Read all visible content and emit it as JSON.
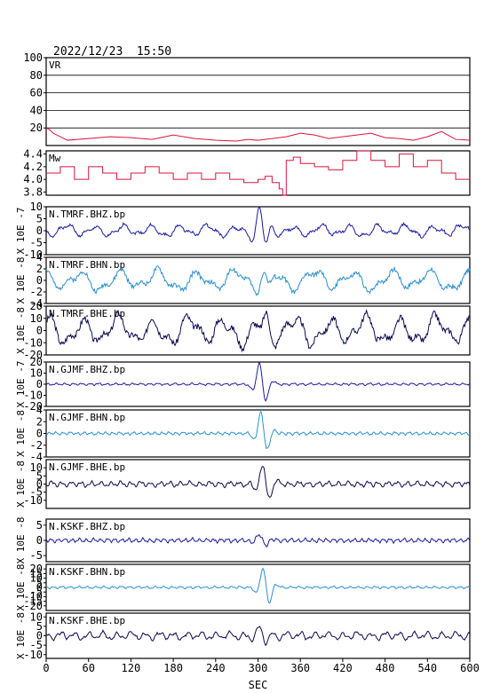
{
  "header": {
    "timestamp": "2022/12/23  15:50"
  },
  "x_axis": {
    "label": "SEC",
    "ticks": [
      "0",
      "60",
      "120",
      "180",
      "240",
      "300",
      "360",
      "420",
      "480",
      "540",
      "600"
    ],
    "range": [
      0,
      600
    ]
  },
  "colors": {
    "frame": "#000000",
    "vr_mw": "#dc143c",
    "bhz": "#1a1aa0",
    "bhn": "#2a8fd0",
    "bhe": "#0a0a50"
  },
  "chart_data": [
    {
      "type": "line",
      "label": "VR",
      "ylim": [
        0,
        100
      ],
      "yticks": [
        "100",
        "80",
        "60",
        "40",
        "20"
      ],
      "grid": true,
      "series": [
        {
          "x": [
            0,
            5,
            10,
            30,
            60,
            90,
            120,
            150,
            180,
            210,
            240,
            270,
            285,
            300,
            320,
            340,
            360,
            380,
            400,
            420,
            440,
            460,
            480,
            500,
            520,
            540,
            560,
            580,
            600
          ],
          "y": [
            20,
            18,
            14,
            6,
            8,
            10,
            9,
            7,
            12,
            8,
            6,
            5,
            7,
            6,
            8,
            10,
            14,
            12,
            8,
            10,
            12,
            14,
            9,
            8,
            6,
            10,
            16,
            7,
            6
          ]
        }
      ]
    },
    {
      "type": "line",
      "label": "Mw",
      "ylim": [
        3.75,
        4.45
      ],
      "yticks": [
        "4.4",
        "4.2",
        "4.0",
        "3.8"
      ],
      "series": [
        {
          "x": [
            0,
            20,
            40,
            60,
            80,
            100,
            120,
            140,
            160,
            180,
            200,
            220,
            240,
            260,
            280,
            300,
            310,
            320,
            330,
            335,
            340,
            350,
            360,
            380,
            400,
            420,
            440,
            460,
            480,
            500,
            520,
            540,
            560,
            580,
            600
          ],
          "y": [
            4.1,
            4.2,
            4.0,
            4.2,
            4.1,
            4.0,
            4.1,
            4.2,
            4.1,
            4.0,
            4.1,
            4.0,
            4.1,
            4.0,
            3.95,
            4.0,
            4.05,
            3.95,
            3.85,
            3.75,
            4.3,
            4.35,
            4.25,
            4.2,
            4.15,
            4.3,
            4.45,
            4.3,
            4.2,
            4.4,
            4.2,
            4.3,
            4.1,
            4.0,
            4.0
          ]
        }
      ]
    },
    {
      "type": "line",
      "label": "N.TMRF.BHZ.bp",
      "ylim": [
        -10,
        10
      ],
      "yticks": [
        "10",
        "5",
        "0",
        "-5",
        "-10"
      ],
      "scale_label": "X 10E -7",
      "color_key": "bhz",
      "amp": 3,
      "period": 40,
      "seed": 1,
      "event": {
        "t": 300,
        "amp": 9
      }
    },
    {
      "type": "line",
      "label": "N.TMRF.BHN.bp",
      "ylim": [
        -4,
        4
      ],
      "yticks": [
        "4",
        "2",
        "0",
        "-2",
        "-4"
      ],
      "scale_label": "X 10E -8",
      "color_key": "bhn",
      "amp": 2.2,
      "period": 55,
      "seed": 2,
      "event": {
        "t": 305,
        "amp": 2
      }
    },
    {
      "type": "line",
      "label": "N.TMRF.BHE.bp",
      "ylim": [
        -20,
        20
      ],
      "yticks": [
        "20",
        "10",
        "0",
        "-10",
        "-20"
      ],
      "scale_label": "X 10E -8",
      "color_key": "bhe",
      "amp": 14,
      "period": 50,
      "seed": 3,
      "event": {
        "t": 310,
        "amp": 8
      }
    },
    {
      "type": "line",
      "label": "N.GJMF.BHZ.bp",
      "ylim": [
        -20,
        20
      ],
      "yticks": [
        "20",
        "10",
        "0",
        "-10",
        "-20"
      ],
      "scale_label": "X 10E -7",
      "color_key": "bhz",
      "amp": 1.2,
      "period": 12,
      "seed": 4,
      "event": {
        "t": 300,
        "amp": 20
      }
    },
    {
      "type": "line",
      "label": "N.GJMF.BHN.bp",
      "ylim": [
        -4,
        4
      ],
      "yticks": [
        "4",
        "2",
        "0",
        "-2",
        "-4"
      ],
      "scale_label": "X 10E -8",
      "color_key": "bhn",
      "amp": 0.3,
      "period": 10,
      "seed": 5,
      "event": {
        "t": 302,
        "amp": 3.8
      }
    },
    {
      "type": "line",
      "label": "N.GJMF.BHE.bp",
      "ylim": [
        -15,
        15
      ],
      "yticks": [
        "10",
        "5",
        "0",
        "-5",
        "-10"
      ],
      "scale_label": "X 10E -8",
      "color_key": "bhe",
      "amp": 2,
      "period": 14,
      "seed": 6,
      "event": {
        "t": 305,
        "amp": 13
      }
    },
    {
      "type": "line",
      "label": "N.KSKF.BHZ.bp",
      "ylim": [
        -7,
        7
      ],
      "yticks": [
        "5",
        "0",
        "-5"
      ],
      "scale_label": "X 10E -8",
      "color_key": "bhz",
      "amp": 0.8,
      "period": 10,
      "seed": 7,
      "event": {
        "t": 300,
        "amp": 2
      }
    },
    {
      "type": "line",
      "label": "N.KSKF.BHN.bp",
      "ylim": [
        -25,
        25
      ],
      "yticks": [
        "20",
        "15",
        "10",
        "5",
        "0",
        "-5",
        "-10",
        "-15",
        "-20"
      ],
      "scale_label": "X 10E -8",
      "color_key": "bhn",
      "amp": 1.5,
      "period": 12,
      "seed": 8,
      "event": {
        "t": 305,
        "amp": 22
      }
    },
    {
      "type": "line",
      "label": "N.KSKF.BHE.bp",
      "ylim": [
        -12,
        12
      ],
      "yticks": [
        "10",
        "5",
        "0",
        "-5",
        "-10"
      ],
      "scale_label": "X 10E -8",
      "color_key": "bhe",
      "amp": 2.5,
      "period": 20,
      "seed": 9,
      "event": {
        "t": 300,
        "amp": 4
      }
    }
  ]
}
